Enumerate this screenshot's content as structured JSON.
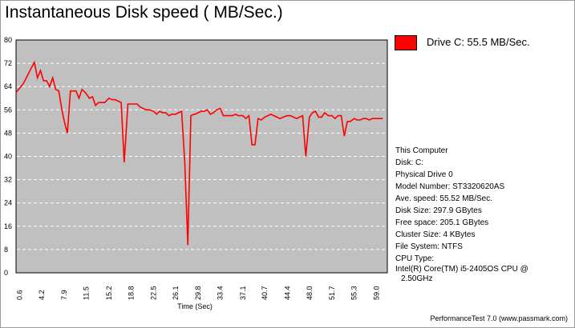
{
  "title": "Instantaneous Disk speed ( MB/Sec.)",
  "legend": {
    "label": "Drive C: 55.5 MB/Sec.",
    "color": "#ff0000"
  },
  "info": {
    "computer": "This Computer",
    "disk": "Disk: C:",
    "physical_drive": "Physical Drive 0",
    "model": "Model Number: ST3320620AS",
    "ave_speed": "Ave. speed: 55.52 MB/Sec.",
    "disk_size": "Disk Size: 297.9 GBytes",
    "free_space": "Free space: 205.1 GBytes",
    "cluster_size": "Cluster Size: 4 KBytes",
    "file_system": "File System: NTFS",
    "cpu_type_label": "CPU Type:",
    "cpu_line1": "Intel(R) Core(TM) i5-2405OS CPU @",
    "cpu_line2": "2.50GHz"
  },
  "footer": "PerformanceTest 7.0 (www.passmark.com)",
  "colors": {
    "plot_background": "#c0c0c0",
    "grid": "#ffffff",
    "series": "#ff0000"
  },
  "chart_data": {
    "type": "line",
    "title": "Instantaneous Disk speed ( MB/Sec.)",
    "xlabel": "Time (Sec)",
    "ylabel": "",
    "ylim": [
      0,
      80
    ],
    "xlim": [
      0,
      60.75
    ],
    "yticks": [
      0,
      8,
      16,
      24,
      32,
      40,
      48,
      56,
      64,
      72,
      80
    ],
    "xticks": [
      "0.6",
      "4.2",
      "7.9",
      "11.5",
      "15.2",
      "18.8",
      "22.5",
      "26.1",
      "29.8",
      "33.4",
      "37.1",
      "40.7",
      "44.4",
      "48.0",
      "51.7",
      "55.3",
      "59.0"
    ],
    "xtick_values": [
      0.6,
      4.2,
      7.9,
      11.5,
      15.2,
      18.8,
      22.5,
      26.1,
      29.8,
      33.4,
      37.1,
      40.7,
      44.4,
      48.0,
      51.7,
      55.3,
      59.0
    ],
    "grid": true,
    "legend_position": "top-right",
    "series": [
      {
        "name": "Drive C: 55.5 MB/Sec.",
        "x": [
          0.0,
          0.6,
          1.2,
          1.8,
          2.4,
          3.0,
          3.5,
          4.0,
          4.5,
          5.0,
          5.5,
          6.0,
          6.5,
          7.0,
          7.5,
          7.9,
          8.4,
          8.9,
          9.3,
          9.8,
          10.3,
          10.8,
          11.3,
          11.5,
          12.0,
          12.5,
          13.0,
          13.5,
          14.0,
          14.5,
          15.2,
          15.7,
          16.2,
          16.7,
          17.2,
          17.7,
          18.3,
          18.8,
          19.3,
          19.8,
          20.3,
          20.8,
          21.3,
          21.8,
          22.5,
          23.0,
          23.5,
          24.0,
          24.5,
          25.0,
          25.5,
          26.1,
          26.6,
          27.1,
          27.6,
          28.1,
          28.6,
          29.1,
          29.3,
          29.8,
          30.3,
          30.8,
          31.3,
          31.8,
          32.3,
          32.8,
          33.4,
          33.9,
          34.4,
          34.9,
          35.4,
          35.9,
          36.4,
          37.1,
          37.6,
          38.1,
          38.6,
          39.1,
          39.6,
          40.1,
          40.7,
          41.2,
          41.7,
          42.2,
          42.7,
          43.2,
          43.7,
          44.4,
          44.9,
          45.4,
          45.9,
          46.4,
          46.9,
          47.4,
          48.0,
          48.5,
          49.0,
          49.5,
          50.0,
          50.5,
          51.1,
          51.7,
          52.2,
          52.7,
          53.2,
          53.7,
          54.2,
          54.7,
          55.3,
          55.8,
          56.3,
          56.8,
          57.3,
          57.8,
          58.3,
          59.0,
          59.5,
          60.0
        ],
        "y": [
          62.0,
          63.5,
          65.0,
          67.5,
          70.0,
          72.3,
          67.0,
          69.5,
          66.0,
          66.0,
          64.0,
          67.0,
          63.0,
          62.5,
          56.0,
          52.0,
          48.0,
          62.5,
          62.5,
          62.5,
          60.0,
          63.0,
          62.0,
          61.5,
          60.0,
          60.5,
          57.5,
          58.5,
          58.5,
          58.5,
          60.0,
          59.5,
          59.5,
          59.0,
          58.5,
          38.0,
          58.0,
          58.0,
          58.0,
          58.0,
          57.0,
          56.5,
          56.0,
          56.0,
          55.5,
          54.5,
          55.5,
          55.0,
          55.0,
          54.0,
          54.5,
          54.5,
          55.0,
          55.5,
          38.0,
          9.5,
          54.0,
          54.5,
          54.5,
          55.0,
          55.5,
          55.5,
          56.0,
          54.5,
          55.0,
          56.0,
          56.5,
          54.0,
          54.0,
          54.0,
          54.0,
          54.5,
          54.0,
          54.0,
          53.0,
          54.0,
          44.0,
          44.0,
          53.0,
          52.5,
          53.5,
          54.0,
          54.5,
          54.0,
          53.5,
          53.0,
          53.5,
          54.0,
          54.0,
          53.5,
          53.0,
          53.5,
          54.0,
          40.0,
          53.5,
          55.0,
          55.5,
          53.5,
          53.5,
          55.0,
          54.0,
          54.0,
          53.0,
          54.0,
          54.0,
          47.0,
          52.0,
          52.0,
          53.0,
          52.5,
          52.5,
          53.0,
          53.0,
          52.5,
          53.0,
          53.0,
          53.0,
          53.0
        ]
      }
    ]
  }
}
